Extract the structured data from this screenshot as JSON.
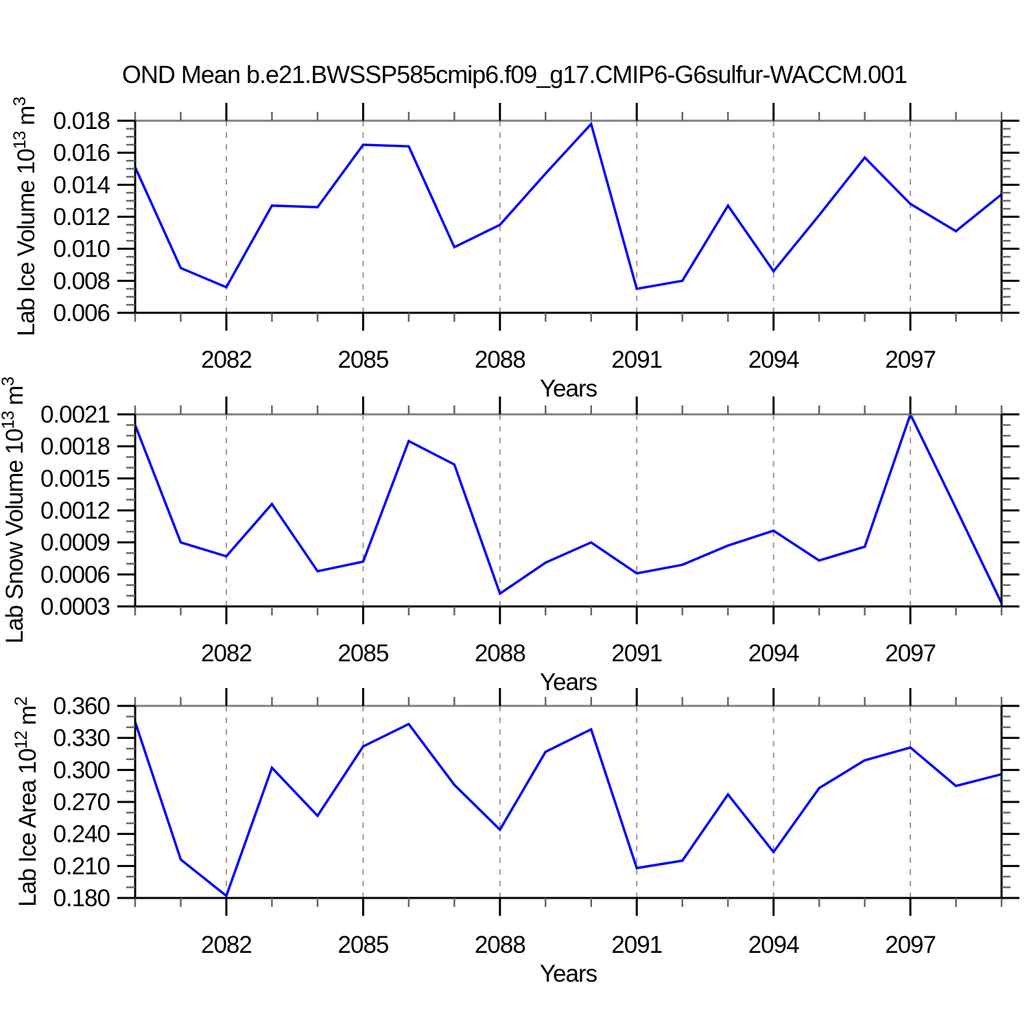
{
  "title": "OND Mean b.e21.BWSSP585cmip6.f09_g17.CMIP6-G6sulfur-WACCM.001",
  "x_axis": {
    "label": "Years",
    "range": [
      2080,
      2099
    ],
    "major_ticks": [
      2082,
      2085,
      2088,
      2091,
      2094,
      2097
    ],
    "major_tick_labels": [
      "2082",
      "2085",
      "2088",
      "2091",
      "2094",
      "2097"
    ],
    "minor_step": 1
  },
  "style": {
    "line_color": "#0000ff",
    "grid_color": "#999999",
    "axis_color": "#000000",
    "top_border_color": "#808080",
    "minor_tick_color": "#666666"
  },
  "years": [
    2080,
    2081,
    2082,
    2083,
    2084,
    2085,
    2086,
    2087,
    2088,
    2089,
    2090,
    2091,
    2092,
    2093,
    2094,
    2095,
    2096,
    2097,
    2098,
    2099
  ],
  "chart_data": [
    {
      "type": "line",
      "ylabel": "Lab Ice Volume 10^13 m^3",
      "ylabel_parts": [
        {
          "text": "Lab Ice Volume 10"
        },
        {
          "sup": "13"
        },
        {
          "text": " m"
        },
        {
          "sup": "3"
        }
      ],
      "xlabel": "Years",
      "ylim": [
        0.006,
        0.018
      ],
      "ytick_values": [
        0.006,
        0.008,
        0.01,
        0.012,
        0.014,
        0.016,
        0.018
      ],
      "ytick_labels": [
        "0.006",
        "0.008",
        "0.010",
        "0.012",
        "0.014",
        "0.016",
        "0.018"
      ],
      "yminor_step": 0.0005,
      "grid": true,
      "legend": "none",
      "values": [
        0.0151,
        0.0088,
        0.0076,
        0.0127,
        0.0126,
        0.0165,
        0.0164,
        0.0101,
        0.0115,
        0.0147,
        0.0178,
        0.0075,
        0.008,
        0.0127,
        0.0086,
        0.0121,
        0.0157,
        0.0128,
        0.0111,
        0.0134
      ]
    },
    {
      "type": "line",
      "ylabel": "Lab Snow Volume 10^13 m^3",
      "ylabel_parts": [
        {
          "text": "Lab Snow Volume 10"
        },
        {
          "sup": "13"
        },
        {
          "text": " m"
        },
        {
          "sup": "3"
        }
      ],
      "xlabel": "Years",
      "ylim": [
        0.0003,
        0.0021
      ],
      "ytick_values": [
        0.0003,
        0.0006,
        0.0009,
        0.0012,
        0.0015,
        0.0018,
        0.0021
      ],
      "ytick_labels": [
        "0.0003",
        "0.0006",
        "0.0009",
        "0.0012",
        "0.0015",
        "0.0018",
        "0.0021"
      ],
      "yminor_step": 0.0001,
      "grid": true,
      "legend": "none",
      "values": [
        0.002,
        0.0009,
        0.00077,
        0.00126,
        0.00063,
        0.00072,
        0.00185,
        0.00163,
        0.00042,
        0.00071,
        0.0009,
        0.00061,
        0.00069,
        0.00087,
        0.00101,
        0.00073,
        0.00086,
        0.0021,
        0.00122,
        0.00033
      ]
    },
    {
      "type": "line",
      "ylabel": "Lab Ice Area 10^12 m^2",
      "ylabel_parts": [
        {
          "text": "Lab Ice Area 10"
        },
        {
          "sup": "12"
        },
        {
          "text": " m"
        },
        {
          "sup": "2"
        }
      ],
      "xlabel": "Years",
      "ylim": [
        0.18,
        0.36
      ],
      "ytick_values": [
        0.18,
        0.21,
        0.24,
        0.27,
        0.3,
        0.33,
        0.36
      ],
      "ytick_labels": [
        "0.180",
        "0.210",
        "0.240",
        "0.270",
        "0.300",
        "0.330",
        "0.360"
      ],
      "yminor_step": 0.01,
      "grid": true,
      "legend": "none",
      "values": [
        0.345,
        0.216,
        0.182,
        0.302,
        0.257,
        0.322,
        0.343,
        0.286,
        0.244,
        0.317,
        0.338,
        0.208,
        0.215,
        0.277,
        0.223,
        0.283,
        0.309,
        0.321,
        0.285,
        0.296
      ]
    }
  ]
}
